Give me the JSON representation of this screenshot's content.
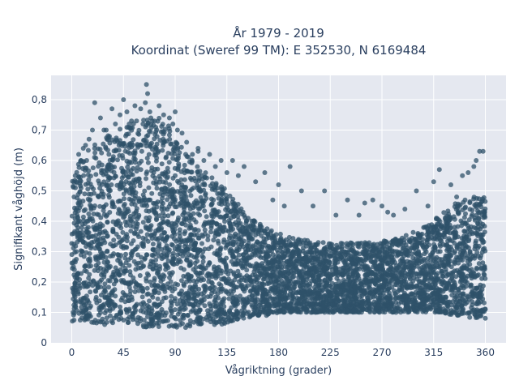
{
  "chart_data": {
    "type": "scatter",
    "title_line1": "År 1979 - 2019",
    "title_line2": "Koordinat (Sweref 99 TM): E 352530, N 6169484",
    "xlabel": "Vågriktning (grader)",
    "ylabel": "Signifikant våghöjd (m)",
    "xlim": [
      -18,
      378
    ],
    "ylim": [
      0,
      0.88
    ],
    "xticks": [
      0,
      45,
      90,
      135,
      180,
      225,
      270,
      315,
      360
    ],
    "xtick_labels": [
      "0",
      "45",
      "90",
      "135",
      "180",
      "225",
      "270",
      "315",
      "360"
    ],
    "yticks": [
      0,
      0.1,
      0.2,
      0.3,
      0.4,
      0.5,
      0.6,
      0.7,
      0.8
    ],
    "ytick_labels": [
      "0",
      "0,1",
      "0,2",
      "0,3",
      "0,4",
      "0,5",
      "0,6",
      "0,7",
      "0,8"
    ],
    "grid": true,
    "marker_color": "#2f5269",
    "plot_bg": "#e5e8f0",
    "envelope": {
      "direction": [
        0,
        10,
        20,
        30,
        40,
        50,
        60,
        70,
        80,
        90,
        100,
        110,
        120,
        130,
        140,
        150,
        160,
        170,
        180,
        200,
        220,
        240,
        260,
        280,
        300,
        310,
        320,
        330,
        340,
        350,
        360
      ],
      "upper": [
        0.55,
        0.62,
        0.66,
        0.68,
        0.7,
        0.72,
        0.74,
        0.75,
        0.74,
        0.68,
        0.62,
        0.58,
        0.55,
        0.52,
        0.48,
        0.44,
        0.4,
        0.38,
        0.36,
        0.34,
        0.33,
        0.33,
        0.33,
        0.34,
        0.37,
        0.39,
        0.42,
        0.45,
        0.47,
        0.48,
        0.48
      ],
      "lower": [
        0.07,
        0.07,
        0.06,
        0.06,
        0.06,
        0.06,
        0.05,
        0.05,
        0.05,
        0.05,
        0.05,
        0.06,
        0.06,
        0.06,
        0.07,
        0.08,
        0.09,
        0.09,
        0.1,
        0.1,
        0.1,
        0.1,
        0.1,
        0.1,
        0.1,
        0.1,
        0.1,
        0.09,
        0.09,
        0.08,
        0.08
      ]
    },
    "series": [
      {
        "x": [
          6,
          12,
          18,
          20,
          25,
          28,
          35,
          38,
          42,
          45,
          48,
          52,
          55,
          60,
          62,
          64,
          65,
          66,
          68,
          72,
          76,
          80,
          85,
          88,
          90,
          92,
          96,
          100,
          105,
          110,
          115,
          120,
          125,
          130,
          135,
          140,
          150,
          160,
          168,
          180,
          190,
          200,
          220,
          240,
          255,
          262,
          270,
          280,
          300,
          315,
          320,
          330,
          340,
          345,
          350,
          355,
          358,
          3,
          8,
          15,
          30,
          50,
          70,
          110,
          145,
          175,
          185,
          210,
          230,
          250,
          275,
          290,
          310,
          335,
          352,
          2,
          4,
          10
        ],
        "y": [
          0.62,
          0.65,
          0.7,
          0.79,
          0.74,
          0.7,
          0.77,
          0.72,
          0.75,
          0.8,
          0.76,
          0.73,
          0.78,
          0.77,
          0.72,
          0.79,
          0.85,
          0.82,
          0.76,
          0.73,
          0.78,
          0.75,
          0.74,
          0.72,
          0.76,
          0.7,
          0.69,
          0.66,
          0.62,
          0.64,
          0.6,
          0.62,
          0.58,
          0.6,
          0.56,
          0.6,
          0.58,
          0.53,
          0.56,
          0.52,
          0.58,
          0.5,
          0.5,
          0.47,
          0.46,
          0.47,
          0.45,
          0.42,
          0.5,
          0.53,
          0.57,
          0.52,
          0.55,
          0.56,
          0.58,
          0.63,
          0.63,
          0.55,
          0.6,
          0.67,
          0.7,
          0.72,
          0.73,
          0.63,
          0.55,
          0.47,
          0.45,
          0.45,
          0.42,
          0.42,
          0.43,
          0.44,
          0.45,
          0.48,
          0.6,
          0.48,
          0.53,
          0.64
        ]
      }
    ]
  }
}
